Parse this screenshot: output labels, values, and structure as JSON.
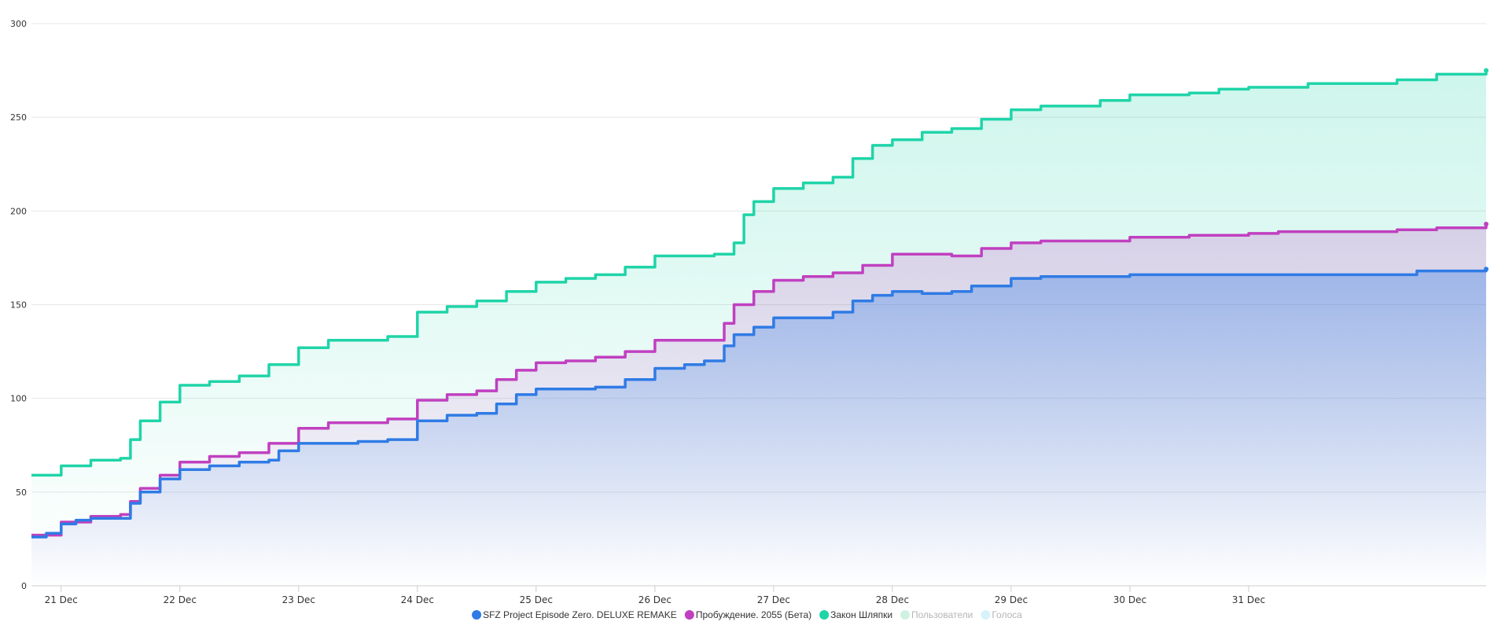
{
  "chart_data": {
    "type": "area",
    "title": "",
    "xlabel": "",
    "ylabel": "",
    "xlim": [
      "2023-12-20T18:00",
      "2024-01-01T24:00"
    ],
    "ylim": [
      0,
      300
    ],
    "y_ticks": [
      0,
      50,
      100,
      150,
      200,
      250,
      300
    ],
    "x_ticks": [
      {
        "date": "2023-12-21",
        "label": "21 Dec"
      },
      {
        "date": "2023-12-22",
        "label": "22 Dec"
      },
      {
        "date": "2023-12-23",
        "label": "23 Dec"
      },
      {
        "date": "2023-12-24",
        "label": "24 Dec"
      },
      {
        "date": "2023-12-25",
        "label": "25 Dec"
      },
      {
        "date": "2023-12-26",
        "label": "26 Dec"
      },
      {
        "date": "2023-12-27",
        "label": "27 Dec"
      },
      {
        "date": "2023-12-28",
        "label": "28 Dec"
      },
      {
        "date": "2023-12-29",
        "label": "29 Dec"
      },
      {
        "date": "2023-12-30",
        "label": "30 Dec"
      },
      {
        "date": "2023-12-31",
        "label": "31 Dec"
      }
    ],
    "grid": true,
    "legend_position": "bottom-center",
    "series": [
      {
        "name": "SFZ Project Episode Zero. DELUXE REMAKE",
        "color": "#2f7be5",
        "visible": true,
        "step": true,
        "points": [
          [
            "2023-12-20T18:00",
            26
          ],
          [
            "2023-12-20T21:00",
            28
          ],
          [
            "2023-12-21T00:00",
            33
          ],
          [
            "2023-12-21T03:00",
            35
          ],
          [
            "2023-12-21T06:00",
            36
          ],
          [
            "2023-12-21T12:00",
            36
          ],
          [
            "2023-12-21T14:00",
            44
          ],
          [
            "2023-12-21T16:00",
            50
          ],
          [
            "2023-12-21T20:00",
            57
          ],
          [
            "2023-12-22T00:00",
            62
          ],
          [
            "2023-12-22T06:00",
            64
          ],
          [
            "2023-12-22T12:00",
            66
          ],
          [
            "2023-12-22T18:00",
            67
          ],
          [
            "2023-12-22T20:00",
            72
          ],
          [
            "2023-12-23T00:00",
            76
          ],
          [
            "2023-12-23T12:00",
            77
          ],
          [
            "2023-12-23T18:00",
            78
          ],
          [
            "2023-12-24T00:00",
            88
          ],
          [
            "2023-12-24T06:00",
            91
          ],
          [
            "2023-12-24T12:00",
            92
          ],
          [
            "2023-12-24T16:00",
            97
          ],
          [
            "2023-12-24T20:00",
            102
          ],
          [
            "2023-12-25T00:00",
            105
          ],
          [
            "2023-12-25T12:00",
            106
          ],
          [
            "2023-12-25T18:00",
            110
          ],
          [
            "2023-12-26T00:00",
            116
          ],
          [
            "2023-12-26T06:00",
            118
          ],
          [
            "2023-12-26T10:00",
            120
          ],
          [
            "2023-12-26T14:00",
            128
          ],
          [
            "2023-12-26T16:00",
            134
          ],
          [
            "2023-12-26T20:00",
            138
          ],
          [
            "2023-12-27T00:00",
            143
          ],
          [
            "2023-12-27T12:00",
            146
          ],
          [
            "2023-12-27T16:00",
            152
          ],
          [
            "2023-12-27T20:00",
            155
          ],
          [
            "2023-12-28T00:00",
            157
          ],
          [
            "2023-12-28T06:00",
            156
          ],
          [
            "2023-12-28T12:00",
            157
          ],
          [
            "2023-12-28T16:00",
            160
          ],
          [
            "2023-12-29T00:00",
            164
          ],
          [
            "2023-12-29T06:00",
            165
          ],
          [
            "2023-12-30T00:00",
            166
          ],
          [
            "2023-12-31T00:00",
            166
          ],
          [
            "2024-01-01T06:00",
            166
          ],
          [
            "2024-01-01T10:00",
            168
          ],
          [
            "2024-01-01T24:00",
            169
          ]
        ]
      },
      {
        "name": "Пробуждение. 2055 (Бета)",
        "color": "#c040c0",
        "visible": true,
        "step": true,
        "points": [
          [
            "2023-12-20T18:00",
            27
          ],
          [
            "2023-12-21T00:00",
            34
          ],
          [
            "2023-12-21T06:00",
            37
          ],
          [
            "2023-12-21T12:00",
            38
          ],
          [
            "2023-12-21T14:00",
            45
          ],
          [
            "2023-12-21T16:00",
            52
          ],
          [
            "2023-12-21T20:00",
            59
          ],
          [
            "2023-12-22T00:00",
            66
          ],
          [
            "2023-12-22T06:00",
            69
          ],
          [
            "2023-12-22T12:00",
            71
          ],
          [
            "2023-12-22T18:00",
            76
          ],
          [
            "2023-12-23T00:00",
            84
          ],
          [
            "2023-12-23T06:00",
            87
          ],
          [
            "2023-12-23T18:00",
            89
          ],
          [
            "2023-12-24T00:00",
            99
          ],
          [
            "2023-12-24T06:00",
            102
          ],
          [
            "2023-12-24T12:00",
            104
          ],
          [
            "2023-12-24T16:00",
            110
          ],
          [
            "2023-12-24T20:00",
            115
          ],
          [
            "2023-12-25T00:00",
            119
          ],
          [
            "2023-12-25T06:00",
            120
          ],
          [
            "2023-12-25T12:00",
            122
          ],
          [
            "2023-12-25T18:00",
            125
          ],
          [
            "2023-12-26T00:00",
            131
          ],
          [
            "2023-12-26T10:00",
            131
          ],
          [
            "2023-12-26T14:00",
            140
          ],
          [
            "2023-12-26T16:00",
            150
          ],
          [
            "2023-12-26T20:00",
            157
          ],
          [
            "2023-12-27T00:00",
            163
          ],
          [
            "2023-12-27T06:00",
            165
          ],
          [
            "2023-12-27T12:00",
            167
          ],
          [
            "2023-12-27T18:00",
            171
          ],
          [
            "2023-12-28T00:00",
            177
          ],
          [
            "2023-12-28T12:00",
            176
          ],
          [
            "2023-12-28T18:00",
            180
          ],
          [
            "2023-12-29T00:00",
            183
          ],
          [
            "2023-12-29T06:00",
            184
          ],
          [
            "2023-12-30T00:00",
            186
          ],
          [
            "2023-12-30T12:00",
            187
          ],
          [
            "2023-12-31T00:00",
            188
          ],
          [
            "2023-12-31T06:00",
            189
          ],
          [
            "2024-01-01T06:00",
            190
          ],
          [
            "2024-01-01T14:00",
            191
          ],
          [
            "2024-01-01T24:00",
            193
          ]
        ]
      },
      {
        "name": "Закон Шляпки",
        "color": "#1fd4a8",
        "visible": true,
        "step": true,
        "points": [
          [
            "2023-12-20T18:00",
            59
          ],
          [
            "2023-12-21T00:00",
            64
          ],
          [
            "2023-12-21T06:00",
            67
          ],
          [
            "2023-12-21T12:00",
            68
          ],
          [
            "2023-12-21T14:00",
            78
          ],
          [
            "2023-12-21T16:00",
            88
          ],
          [
            "2023-12-21T20:00",
            98
          ],
          [
            "2023-12-22T00:00",
            107
          ],
          [
            "2023-12-22T06:00",
            109
          ],
          [
            "2023-12-22T12:00",
            112
          ],
          [
            "2023-12-22T18:00",
            118
          ],
          [
            "2023-12-23T00:00",
            127
          ],
          [
            "2023-12-23T06:00",
            131
          ],
          [
            "2023-12-23T18:00",
            133
          ],
          [
            "2023-12-24T00:00",
            146
          ],
          [
            "2023-12-24T06:00",
            149
          ],
          [
            "2023-12-24T12:00",
            152
          ],
          [
            "2023-12-24T18:00",
            157
          ],
          [
            "2023-12-25T00:00",
            162
          ],
          [
            "2023-12-25T06:00",
            164
          ],
          [
            "2023-12-25T12:00",
            166
          ],
          [
            "2023-12-25T18:00",
            170
          ],
          [
            "2023-12-26T00:00",
            176
          ],
          [
            "2023-12-26T12:00",
            177
          ],
          [
            "2023-12-26T16:00",
            183
          ],
          [
            "2023-12-26T18:00",
            198
          ],
          [
            "2023-12-26T20:00",
            205
          ],
          [
            "2023-12-27T00:00",
            212
          ],
          [
            "2023-12-27T06:00",
            215
          ],
          [
            "2023-12-27T12:00",
            218
          ],
          [
            "2023-12-27T16:00",
            228
          ],
          [
            "2023-12-27T20:00",
            235
          ],
          [
            "2023-12-28T00:00",
            238
          ],
          [
            "2023-12-28T06:00",
            242
          ],
          [
            "2023-12-28T12:00",
            244
          ],
          [
            "2023-12-28T18:00",
            249
          ],
          [
            "2023-12-29T00:00",
            254
          ],
          [
            "2023-12-29T06:00",
            256
          ],
          [
            "2023-12-29T18:00",
            259
          ],
          [
            "2023-12-30T00:00",
            262
          ],
          [
            "2023-12-30T12:00",
            263
          ],
          [
            "2023-12-30T18:00",
            265
          ],
          [
            "2023-12-31T00:00",
            266
          ],
          [
            "2023-12-31T12:00",
            268
          ],
          [
            "2024-01-01T06:00",
            270
          ],
          [
            "2024-01-01T14:00",
            273
          ],
          [
            "2024-01-01T24:00",
            275
          ]
        ]
      },
      {
        "name": "Пользователи",
        "color": "#a8e6c8",
        "visible": false,
        "points": []
      },
      {
        "name": "Голоса",
        "color": "#b8e8f8",
        "visible": false,
        "points": []
      }
    ]
  }
}
